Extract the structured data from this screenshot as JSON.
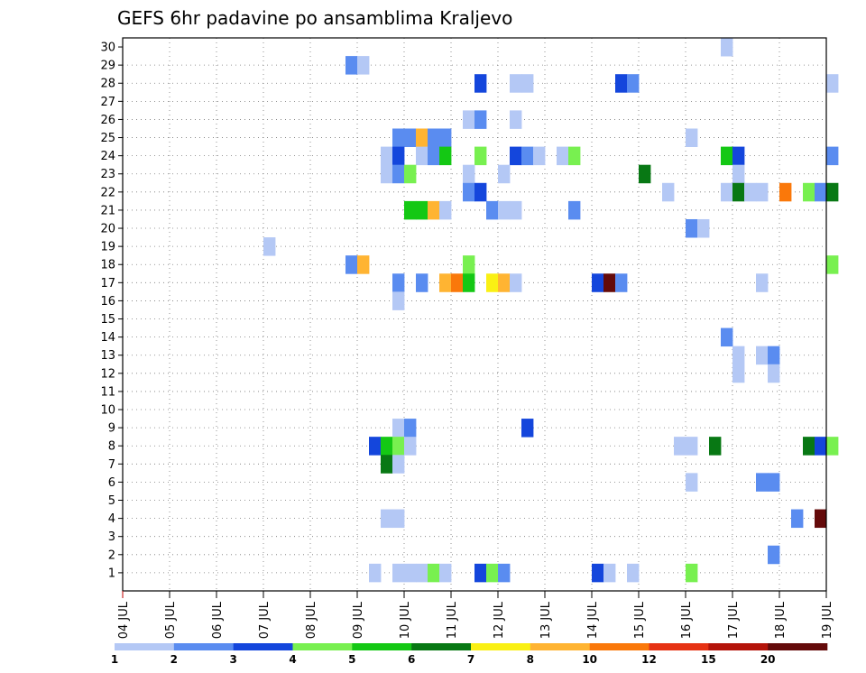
{
  "chart_data": {
    "type": "heatmap",
    "title": "GEFS 6hr padavine po ansamblima Kraljevo",
    "xlabel": "",
    "ylabel": "",
    "x_ticks": [
      "04 JUL",
      "05 JUL",
      "06 JUL",
      "07 JUL",
      "08 JUL",
      "09 JUL",
      "10 JUL",
      "11 JUL",
      "12 JUL",
      "13 JUL",
      "14 JUL",
      "15 JUL",
      "16 JUL",
      "17 JUL",
      "18 JUL",
      "19 JUL"
    ],
    "x_range": [
      "04 JUL 00Z",
      "19 JUL 00Z"
    ],
    "y_ticks": [
      "1",
      "2",
      "3",
      "4",
      "5",
      "6",
      "7",
      "8",
      "9",
      "10",
      "11",
      "12",
      "13",
      "14",
      "15",
      "16",
      "17",
      "18",
      "19",
      "20",
      "21",
      "22",
      "23",
      "24",
      "25",
      "26",
      "27",
      "28",
      "29",
      "30"
    ],
    "y_range": [
      0,
      30
    ],
    "grid": true,
    "legend": {
      "placement": "bottom",
      "labels": [
        "1",
        "2",
        "3",
        "4",
        "5",
        "6",
        "7",
        "8",
        "10",
        "12",
        "15",
        "20"
      ],
      "colors": [
        "#b4c8f5",
        "#5a8cf0",
        "#1446dc",
        "#78f050",
        "#14c814",
        "#087814",
        "#faf014",
        "#ffb432",
        "#fa780a",
        "#e63214",
        "#b4140a",
        "#640a0a"
      ]
    },
    "cells_note": "",
    "cells": [
      {
        "m": 30,
        "x": "16.75",
        "c": 1
      },
      {
        "m": 29,
        "x": "08.75",
        "c": 2
      },
      {
        "m": 29,
        "x": "09.00",
        "c": 1
      },
      {
        "m": 28,
        "x": "11.50",
        "c": 3
      },
      {
        "m": 28,
        "x": "12.25",
        "c": 1
      },
      {
        "m": 28,
        "x": "12.50",
        "c": 1
      },
      {
        "m": 28,
        "x": "14.50",
        "c": 3
      },
      {
        "m": 28,
        "x": "14.75",
        "c": 2
      },
      {
        "m": 28,
        "x": "19.00",
        "c": 1
      },
      {
        "m": 26,
        "x": "11.25",
        "c": 1
      },
      {
        "m": 26,
        "x": "11.50",
        "c": 2
      },
      {
        "m": 26,
        "x": "12.25",
        "c": 1
      },
      {
        "m": 25,
        "x": "09.75",
        "c": 2
      },
      {
        "m": 25,
        "x": "10.00",
        "c": 2
      },
      {
        "m": 25,
        "x": "10.25",
        "c": 8
      },
      {
        "m": 25,
        "x": "10.50",
        "c": 2
      },
      {
        "m": 25,
        "x": "10.75",
        "c": 2
      },
      {
        "m": 25,
        "x": "16.00",
        "c": 1
      },
      {
        "m": 24,
        "x": "09.50",
        "c": 1
      },
      {
        "m": 24,
        "x": "09.75",
        "c": 3
      },
      {
        "m": 24,
        "x": "10.25",
        "c": 1
      },
      {
        "m": 24,
        "x": "10.50",
        "c": 2
      },
      {
        "m": 24,
        "x": "10.75",
        "c": 5
      },
      {
        "m": 24,
        "x": "11.50",
        "c": 4
      },
      {
        "m": 24,
        "x": "12.25",
        "c": 3
      },
      {
        "m": 24,
        "x": "12.50",
        "c": 2
      },
      {
        "m": 24,
        "x": "12.75",
        "c": 1
      },
      {
        "m": 24,
        "x": "13.25",
        "c": 1
      },
      {
        "m": 24,
        "x": "13.50",
        "c": 4
      },
      {
        "m": 24,
        "x": "16.75",
        "c": 5
      },
      {
        "m": 24,
        "x": "17.00",
        "c": 3
      },
      {
        "m": 24,
        "x": "19.00",
        "c": 2
      },
      {
        "m": 23,
        "x": "09.50",
        "c": 1
      },
      {
        "m": 23,
        "x": "09.75",
        "c": 2
      },
      {
        "m": 23,
        "x": "10.00",
        "c": 4
      },
      {
        "m": 23,
        "x": "11.25",
        "c": 1
      },
      {
        "m": 23,
        "x": "12.00",
        "c": 1
      },
      {
        "m": 23,
        "x": "15.00",
        "c": 6
      },
      {
        "m": 23,
        "x": "17.00",
        "c": 1
      },
      {
        "m": 22,
        "x": "11.25",
        "c": 2
      },
      {
        "m": 22,
        "x": "11.50",
        "c": 3
      },
      {
        "m": 22,
        "x": "15.50",
        "c": 1
      },
      {
        "m": 22,
        "x": "16.75",
        "c": 1
      },
      {
        "m": 22,
        "x": "17.00",
        "c": 6
      },
      {
        "m": 22,
        "x": "17.25",
        "c": 1
      },
      {
        "m": 22,
        "x": "17.50",
        "c": 1
      },
      {
        "m": 22,
        "x": "18.00",
        "c": 9
      },
      {
        "m": 22,
        "x": "18.50",
        "c": 4
      },
      {
        "m": 22,
        "x": "18.75",
        "c": 2
      },
      {
        "m": 22,
        "x": "19.00",
        "c": 6
      },
      {
        "m": 21,
        "x": "10.00",
        "c": 5
      },
      {
        "m": 21,
        "x": "10.25",
        "c": 5
      },
      {
        "m": 21,
        "x": "10.50",
        "c": 8
      },
      {
        "m": 21,
        "x": "10.75",
        "c": 1
      },
      {
        "m": 21,
        "x": "11.75",
        "c": 2
      },
      {
        "m": 21,
        "x": "12.00",
        "c": 1
      },
      {
        "m": 21,
        "x": "12.25",
        "c": 1
      },
      {
        "m": 21,
        "x": "13.50",
        "c": 2
      },
      {
        "m": 20,
        "x": "16.00",
        "c": 2
      },
      {
        "m": 20,
        "x": "16.25",
        "c": 1
      },
      {
        "m": 19,
        "x": "07.00",
        "c": 1
      },
      {
        "m": 18,
        "x": "08.75",
        "c": 2
      },
      {
        "m": 18,
        "x": "09.00",
        "c": 8
      },
      {
        "m": 18,
        "x": "11.25",
        "c": 4
      },
      {
        "m": 18,
        "x": "19.00",
        "c": 4
      },
      {
        "m": 17,
        "x": "09.75",
        "c": 2
      },
      {
        "m": 17,
        "x": "10.25",
        "c": 2
      },
      {
        "m": 17,
        "x": "10.75",
        "c": 8
      },
      {
        "m": 17,
        "x": "11.00",
        "c": 9
      },
      {
        "m": 17,
        "x": "11.25",
        "c": 5
      },
      {
        "m": 17,
        "x": "11.75",
        "c": 7
      },
      {
        "m": 17,
        "x": "12.00",
        "c": 8
      },
      {
        "m": 17,
        "x": "12.25",
        "c": 1
      },
      {
        "m": 17,
        "x": "14.00",
        "c": 3
      },
      {
        "m": 17,
        "x": "14.25",
        "c": 12
      },
      {
        "m": 17,
        "x": "14.50",
        "c": 2
      },
      {
        "m": 17,
        "x": "17.50",
        "c": 1
      },
      {
        "m": 16,
        "x": "09.75",
        "c": 1
      },
      {
        "m": 14,
        "x": "16.75",
        "c": 2
      },
      {
        "m": 13,
        "x": "17.00",
        "c": 1
      },
      {
        "m": 13,
        "x": "17.50",
        "c": 1
      },
      {
        "m": 13,
        "x": "17.75",
        "c": 2
      },
      {
        "m": 12,
        "x": "17.00",
        "c": 1
      },
      {
        "m": 12,
        "x": "17.75",
        "c": 1
      },
      {
        "m": 9,
        "x": "09.75",
        "c": 1
      },
      {
        "m": 9,
        "x": "10.00",
        "c": 2
      },
      {
        "m": 9,
        "x": "12.50",
        "c": 3
      },
      {
        "m": 8,
        "x": "09.25",
        "c": 3
      },
      {
        "m": 8,
        "x": "09.50",
        "c": 5
      },
      {
        "m": 8,
        "x": "09.75",
        "c": 4
      },
      {
        "m": 8,
        "x": "10.00",
        "c": 1
      },
      {
        "m": 8,
        "x": "15.75",
        "c": 1
      },
      {
        "m": 8,
        "x": "16.00",
        "c": 1
      },
      {
        "m": 8,
        "x": "16.50",
        "c": 6
      },
      {
        "m": 8,
        "x": "18.50",
        "c": 6
      },
      {
        "m": 8,
        "x": "18.75",
        "c": 3
      },
      {
        "m": 8,
        "x": "19.00",
        "c": 4
      },
      {
        "m": 7,
        "x": "09.50",
        "c": 6
      },
      {
        "m": 7,
        "x": "09.75",
        "c": 1
      },
      {
        "m": 6,
        "x": "16.00",
        "c": 1
      },
      {
        "m": 6,
        "x": "17.50",
        "c": 2
      },
      {
        "m": 6,
        "x": "17.75",
        "c": 2
      },
      {
        "m": 4,
        "x": "09.50",
        "c": 1
      },
      {
        "m": 4,
        "x": "09.75",
        "c": 1
      },
      {
        "m": 4,
        "x": "18.25",
        "c": 2
      },
      {
        "m": 4,
        "x": "18.75",
        "c": 12
      },
      {
        "m": 2,
        "x": "17.75",
        "c": 2
      },
      {
        "m": 1,
        "x": "09.25",
        "c": 1
      },
      {
        "m": 1,
        "x": "09.75",
        "c": 1
      },
      {
        "m": 1,
        "x": "10.00",
        "c": 1
      },
      {
        "m": 1,
        "x": "10.25",
        "c": 1
      },
      {
        "m": 1,
        "x": "10.50",
        "c": 4
      },
      {
        "m": 1,
        "x": "10.75",
        "c": 1
      },
      {
        "m": 1,
        "x": "11.50",
        "c": 3
      },
      {
        "m": 1,
        "x": "11.75",
        "c": 4
      },
      {
        "m": 1,
        "x": "12.00",
        "c": 2
      },
      {
        "m": 1,
        "x": "14.00",
        "c": 3
      },
      {
        "m": 1,
        "x": "14.25",
        "c": 1
      },
      {
        "m": 1,
        "x": "14.75",
        "c": 1
      },
      {
        "m": 1,
        "x": "16.00",
        "c": 4
      }
    ]
  }
}
